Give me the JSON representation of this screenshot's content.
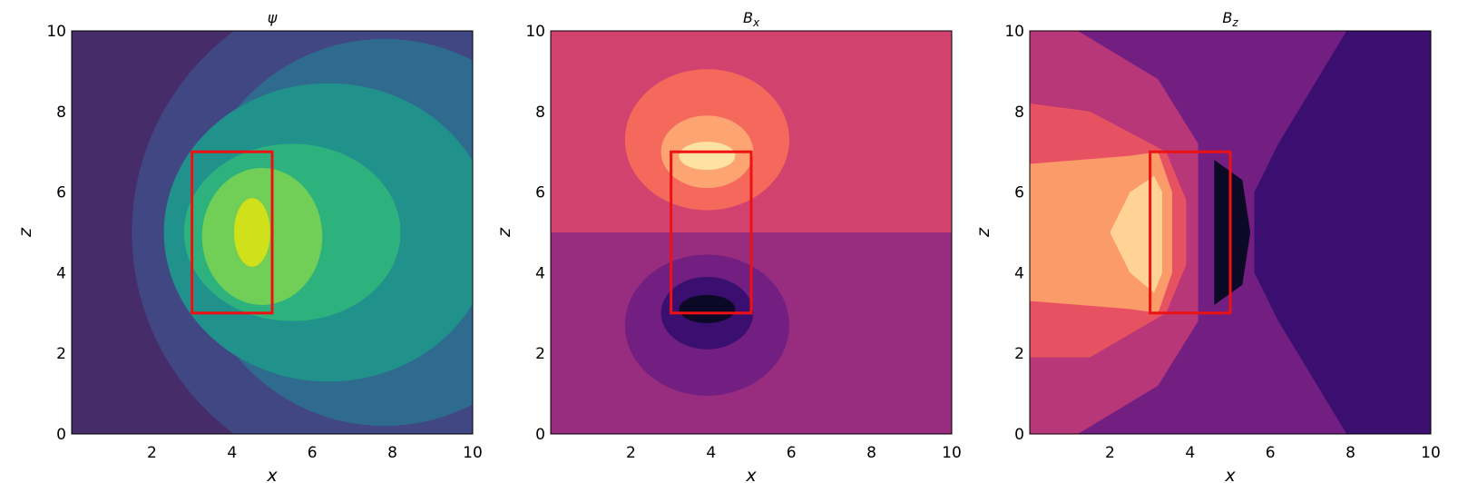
{
  "chart_data": [
    {
      "type": "contour",
      "title": "ψ",
      "xlabel": "x",
      "ylabel": "z",
      "xlim": [
        0,
        10
      ],
      "ylim": [
        0,
        10
      ],
      "xticks": [
        "2",
        "4",
        "6",
        "8",
        "10"
      ],
      "yticks": [
        "0",
        "2",
        "4",
        "6",
        "8",
        "10"
      ],
      "colormap": "viridis",
      "background": "#462d6a",
      "levels": [
        {
          "color": "#414782",
          "cx": 8.0,
          "cy": 5.0,
          "rx": 6.5,
          "ry": 6.3
        },
        {
          "color": "#2f6b8e",
          "cx": 7.8,
          "cy": 5.0,
          "rx": 4.8,
          "ry": 4.8
        },
        {
          "color": "#21918c",
          "cx": 6.4,
          "cy": 5.0,
          "rx": 4.1,
          "ry": 3.7
        },
        {
          "color": "#2db27d",
          "cx": 5.5,
          "cy": 5.0,
          "rx": 2.7,
          "ry": 2.2
        },
        {
          "color": "#71cf57",
          "cx": 4.75,
          "cy": 4.9,
          "rx": 1.5,
          "ry": 1.7
        },
        {
          "color": "#d0e11c",
          "cx": 4.5,
          "cy": 5.0,
          "rx": 0.45,
          "ry": 0.85
        }
      ],
      "box": {
        "x0": 3,
        "x1": 5,
        "z0": 3,
        "z1": 7,
        "color": "#ee1111"
      }
    },
    {
      "type": "contour",
      "title": "B",
      "title_subscript": "x",
      "xlabel": "x",
      "ylabel": "z",
      "xlim": [
        0,
        10
      ],
      "ylim": [
        0,
        10
      ],
      "xticks": [
        "2",
        "4",
        "6",
        "8",
        "10"
      ],
      "yticks": [
        "0",
        "2",
        "4",
        "6",
        "8",
        "10"
      ],
      "colormap": "magma",
      "background_top": "#d1426f",
      "background_bottom": "#982d80",
      "split_z": 5,
      "levels": [
        {
          "color": "#f4695c",
          "cx": 3.9,
          "cy": 7.3,
          "rx": 2.05,
          "ry": 1.75
        },
        {
          "color": "#fca572",
          "cx": 3.9,
          "cy": 7.0,
          "rx": 1.15,
          "ry": 0.9
        },
        {
          "color": "#fde2a3",
          "cx": 3.9,
          "cy": 6.9,
          "rx": 0.7,
          "ry": 0.35
        },
        {
          "color": "#721f81",
          "cx": 3.9,
          "cy": 2.7,
          "rx": 2.05,
          "ry": 1.75
        },
        {
          "color": "#3b0f70",
          "cx": 3.9,
          "cy": 3.0,
          "rx": 1.15,
          "ry": 0.9
        },
        {
          "color": "#0c0926",
          "cx": 3.9,
          "cy": 3.1,
          "rx": 0.7,
          "ry": 0.35
        }
      ],
      "box": {
        "x0": 3,
        "x1": 5,
        "z0": 3,
        "z1": 7,
        "color": "#ee1111"
      }
    },
    {
      "type": "contour",
      "title": "B",
      "title_subscript": "z",
      "xlabel": "x",
      "ylabel": "z",
      "xlim": [
        0,
        10
      ],
      "ylim": [
        0,
        10
      ],
      "xticks": [
        "2",
        "4",
        "6",
        "8",
        "10"
      ],
      "yticks": [
        "0",
        "2",
        "4",
        "6",
        "8",
        "10"
      ],
      "colormap": "magma",
      "background": "#3b0f70",
      "levels": [
        {
          "color": "#721f81",
          "points": [
            [
              0,
              10
            ],
            [
              7.9,
              10
            ],
            [
              6.2,
              7.2
            ],
            [
              5.6,
              6.0
            ],
            [
              5.6,
              4.0
            ],
            [
              6.2,
              2.8
            ],
            [
              7.9,
              0
            ],
            [
              0,
              0
            ]
          ]
        },
        {
          "color": "#b73779",
          "points": [
            [
              0,
              10
            ],
            [
              1.2,
              10
            ],
            [
              3.2,
              8.8
            ],
            [
              4.2,
              7.2
            ],
            [
              4.2,
              2.8
            ],
            [
              3.2,
              1.2
            ],
            [
              1.2,
              0
            ],
            [
              0,
              0
            ]
          ]
        },
        {
          "color": "#e75263",
          "points": [
            [
              0,
              8.2
            ],
            [
              1.5,
              8.0
            ],
            [
              3.4,
              7.0
            ],
            [
              3.9,
              5.8
            ],
            [
              3.9,
              4.2
            ],
            [
              3.4,
              3.0
            ],
            [
              1.5,
              1.9
            ],
            [
              0,
              1.9
            ]
          ]
        },
        {
          "color": "#fb9b6a",
          "points": [
            [
              0,
              6.7
            ],
            [
              2.5,
              6.9
            ],
            [
              3.2,
              7.0
            ],
            [
              3.55,
              6.0
            ],
            [
              3.55,
              4.0
            ],
            [
              3.2,
              3.0
            ],
            [
              2.5,
              3.1
            ],
            [
              0,
              3.3
            ]
          ]
        },
        {
          "color": "#fed395",
          "points": [
            [
              3.1,
              6.4
            ],
            [
              2.5,
              6.0
            ],
            [
              2.0,
              5.0
            ],
            [
              2.5,
              4.0
            ],
            [
              3.1,
              3.5
            ],
            [
              3.3,
              4.0
            ],
            [
              3.3,
              6.0
            ]
          ]
        },
        {
          "color": "#0c0926",
          "points": [
            [
              4.6,
              6.8
            ],
            [
              5.3,
              6.3
            ],
            [
              5.5,
              5.0
            ],
            [
              5.3,
              3.7
            ],
            [
              4.6,
              3.2
            ],
            [
              4.6,
              6.8
            ]
          ]
        }
      ],
      "box": {
        "x0": 3,
        "x1": 5,
        "z0": 3,
        "z1": 7,
        "color": "#ee1111"
      }
    }
  ]
}
